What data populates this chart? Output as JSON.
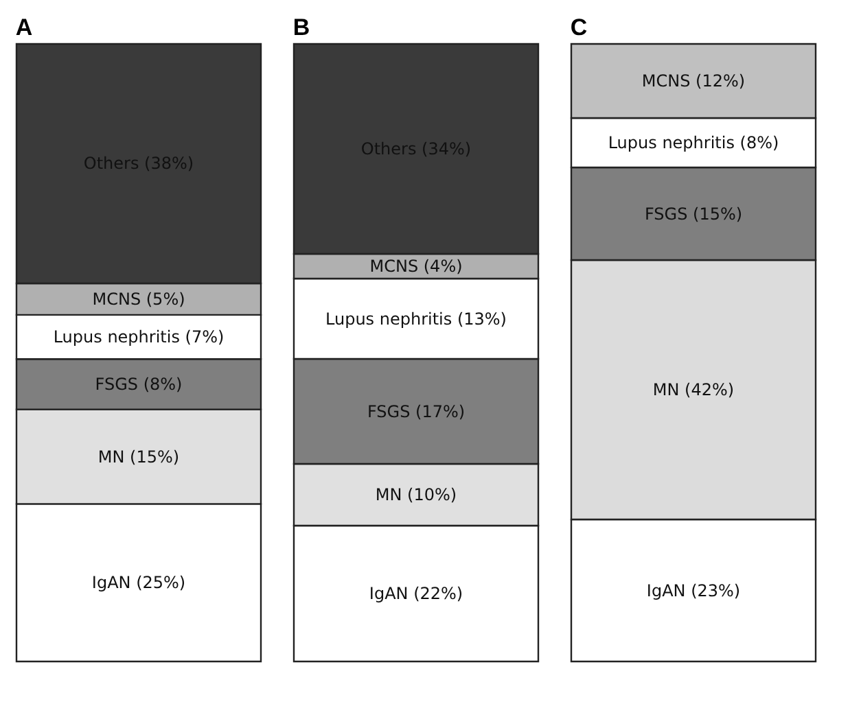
{
  "chart_data": [
    {
      "type": "bar",
      "title": "A",
      "stacked": true,
      "categories": [
        null
      ],
      "series": [
        {
          "color": "#ffffff",
          "values": [
            25
          ],
          "value_labels": [
            "IgAN (25%)"
          ]
        },
        {
          "color": "#e0e0e0",
          "values": [
            15
          ],
          "value_labels": [
            "MN (15%)"
          ]
        },
        {
          "color": "#7f7f7f",
          "values": [
            8
          ],
          "value_labels": [
            "FSGS (8%)"
          ]
        },
        {
          "color": "#ffffff",
          "values": [
            7
          ],
          "value_labels": [
            "Lupus nephritis (7%)"
          ]
        },
        {
          "color": "#b0b0b0",
          "values": [
            5
          ],
          "value_labels": [
            "MCNS (5%)"
          ]
        },
        {
          "color": "#3a3a3a",
          "values": [
            38
          ],
          "value_labels": [
            "Others (38%)"
          ]
        }
      ]
    },
    {
      "type": "bar",
      "title": "B",
      "stacked": true,
      "categories": [
        null
      ],
      "series": [
        {
          "color": "#ffffff",
          "values": [
            22
          ],
          "value_labels": [
            "IgAN (22%)"
          ]
        },
        {
          "color": "#e0e0e0",
          "values": [
            10
          ],
          "value_labels": [
            "MN (10%)"
          ]
        },
        {
          "color": "#7f7f7f",
          "values": [
            17
          ],
          "value_labels": [
            "FSGS (17%)"
          ]
        },
        {
          "color": "#ffffff",
          "values": [
            13
          ],
          "value_labels": [
            "Lupus nephritis (13%)"
          ]
        },
        {
          "color": "#b0b0b0",
          "values": [
            4
          ],
          "value_labels": [
            "MCNS (4%)"
          ]
        },
        {
          "color": "#3a3a3a",
          "values": [
            34
          ],
          "value_labels": [
            "Others (34%)"
          ]
        }
      ]
    },
    {
      "type": "bar",
      "title": "C",
      "stacked": true,
      "categories": [
        null
      ],
      "series": [
        {
          "color": "#ffffff",
          "values": [
            23
          ],
          "value_labels": [
            "IgAN (23%)"
          ]
        },
        {
          "color": "#dcdcdc",
          "values": [
            42
          ],
          "value_labels": [
            "MN (42%)"
          ]
        },
        {
          "color": "#7f7f7f",
          "values": [
            15
          ],
          "value_labels": [
            "FSGS (15%)"
          ]
        },
        {
          "color": "#ffffff",
          "values": [
            8
          ],
          "value_labels": [
            "Lupus nephritis (8%)"
          ]
        },
        {
          "color": "#c0c0c0",
          "values": [
            12
          ],
          "value_labels": [
            "MCNS (12%)"
          ]
        }
      ]
    }
  ]
}
